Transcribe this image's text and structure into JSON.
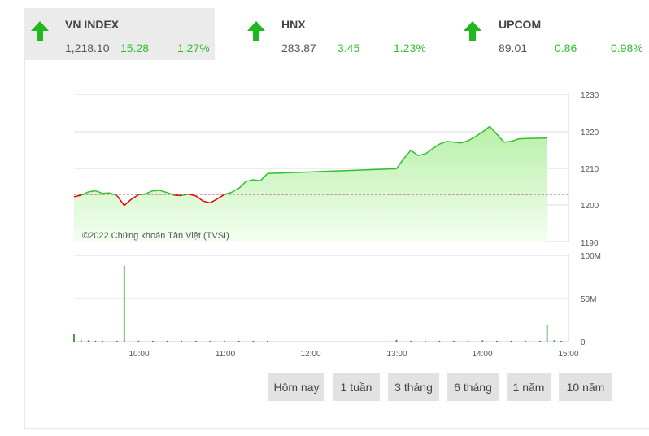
{
  "tabs": [
    {
      "name": "VN INDEX",
      "value": "1,218.10",
      "change": "15.28",
      "percent": "1.27%",
      "direction": "up",
      "active": true
    },
    {
      "name": "HNX",
      "value": "283.87",
      "change": "3.45",
      "percent": "1.23%",
      "direction": "up",
      "active": false
    },
    {
      "name": "UPCOM",
      "value": "89.01",
      "change": "0.86",
      "percent": "0.98%",
      "direction": "up",
      "active": false
    }
  ],
  "colors": {
    "up": "#2fbf2f",
    "down": "#e60000",
    "area_top": "#b8f0a8",
    "area_bottom": "#f3fff0",
    "reference": "#b01010",
    "volume": "#1a8a1a"
  },
  "chart_data": [
    {
      "type": "area",
      "copyright": "©2022 Chứng khoán Tân Việt (TVSI)",
      "reference": 1202.82,
      "ylim": [
        1190,
        1230
      ],
      "yticks": [
        "1230",
        "1220",
        "1210",
        "1200",
        "1190"
      ],
      "x": [
        "09:15",
        "09:20",
        "09:25",
        "09:30",
        "09:35",
        "09:40",
        "09:45",
        "09:50",
        "09:55",
        "10:00",
        "10:05",
        "10:10",
        "10:15",
        "10:20",
        "10:25",
        "10:30",
        "10:35",
        "10:40",
        "10:45",
        "10:50",
        "10:55",
        "11:00",
        "11:05",
        "11:10",
        "11:15",
        "11:20",
        "11:25",
        "11:30",
        "13:00",
        "13:05",
        "13:10",
        "13:15",
        "13:20",
        "13:25",
        "13:30",
        "13:35",
        "13:40",
        "13:45",
        "13:50",
        "13:55",
        "14:00",
        "14:05",
        "14:10",
        "14:15",
        "14:20",
        "14:25",
        "14:30",
        "14:45"
      ],
      "values": [
        1202.2,
        1202.6,
        1203.5,
        1203.8,
        1203.1,
        1203.2,
        1202.5,
        1199.8,
        1201.5,
        1202.7,
        1203.0,
        1203.8,
        1203.9,
        1203.3,
        1202.6,
        1202.5,
        1202.9,
        1202.4,
        1201.0,
        1200.5,
        1201.6,
        1202.8,
        1203.4,
        1204.5,
        1206.3,
        1206.8,
        1206.5,
        1208.5,
        1209.8,
        1212.5,
        1214.8,
        1213.4,
        1213.8,
        1215.2,
        1216.5,
        1217.2,
        1217.0,
        1216.8,
        1217.4,
        1218.5,
        1219.8,
        1221.3,
        1219.2,
        1217.0,
        1217.2,
        1217.9,
        1218.0,
        1218.1
      ],
      "xlim": [
        "09:15",
        "15:00"
      ]
    },
    {
      "type": "bar",
      "ylim": [
        0,
        100
      ],
      "yticks": [
        "100M",
        "50M",
        "0"
      ],
      "xticks": [
        "10:00",
        "11:00",
        "12:00",
        "13:00",
        "14:00",
        "15:00"
      ],
      "x": [
        "09:15",
        "09:20",
        "09:25",
        "09:30",
        "09:35",
        "09:45",
        "09:50",
        "10:00",
        "10:10",
        "10:20",
        "10:30",
        "10:40",
        "10:50",
        "11:00",
        "11:10",
        "11:20",
        "11:30",
        "13:00",
        "13:10",
        "13:20",
        "13:30",
        "13:40",
        "13:50",
        "14:00",
        "14:10",
        "14:20",
        "14:30",
        "14:40",
        "14:45",
        "14:50",
        "14:55"
      ],
      "values": [
        9,
        2,
        1.5,
        1,
        1,
        1,
        88,
        1,
        1,
        1,
        1,
        1,
        1,
        1,
        1,
        1,
        1,
        2,
        1,
        1,
        1,
        1,
        1,
        1.5,
        1,
        1,
        1,
        1,
        20,
        1.5,
        1
      ]
    }
  ],
  "ranges": [
    "Hôm nay",
    "1 tuần",
    "3 tháng",
    "6 tháng",
    "1 năm",
    "10 năm"
  ]
}
